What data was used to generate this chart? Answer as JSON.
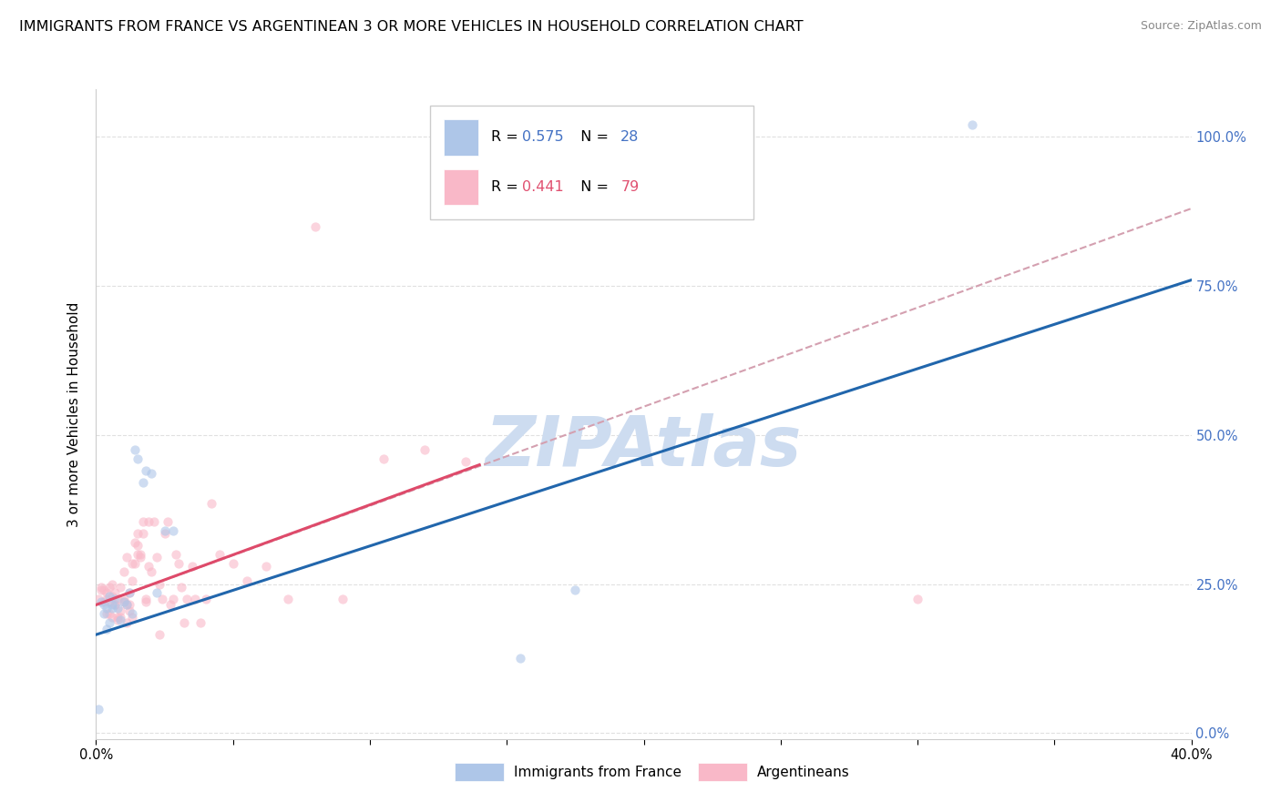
{
  "title": "IMMIGRANTS FROM FRANCE VS ARGENTINEAN 3 OR MORE VEHICLES IN HOUSEHOLD CORRELATION CHART",
  "source": "Source: ZipAtlas.com",
  "ylabel": "3 or more Vehicles in Household",
  "xlim": [
    0.0,
    0.4
  ],
  "ylim": [
    -0.01,
    1.08
  ],
  "xtick_positions": [
    0.0,
    0.05,
    0.1,
    0.15,
    0.2,
    0.25,
    0.3,
    0.35,
    0.4
  ],
  "xtick_labels": [
    "0.0%",
    "",
    "",
    "",
    "",
    "",
    "",
    "",
    "40.0%"
  ],
  "yticks_right": [
    0.0,
    0.25,
    0.5,
    0.75,
    1.0
  ],
  "yticklabels_right": [
    "0.0%",
    "25.0%",
    "50.0%",
    "75.0%",
    "100.0%"
  ],
  "blue_label": "Immigrants from France",
  "pink_label": "Argentineans",
  "R_blue": "0.575",
  "N_blue": "28",
  "R_pink": "0.441",
  "N_pink": "79",
  "blue_color": "#aec6e8",
  "pink_color": "#f9b8c8",
  "blue_line_color": "#2166ac",
  "pink_line_color": "#de4a6a",
  "dashed_line_color": "#d4a0b0",
  "watermark": "ZIPAtlas",
  "watermark_color": "#cddcf0",
  "blue_scatter_x": [
    0.001,
    0.002,
    0.003,
    0.003,
    0.004,
    0.004,
    0.005,
    0.005,
    0.006,
    0.006,
    0.007,
    0.008,
    0.009,
    0.01,
    0.011,
    0.012,
    0.013,
    0.014,
    0.015,
    0.017,
    0.018,
    0.02,
    0.022,
    0.025,
    0.028,
    0.155,
    0.175,
    0.32
  ],
  "blue_scatter_y": [
    0.04,
    0.22,
    0.215,
    0.2,
    0.21,
    0.175,
    0.23,
    0.185,
    0.215,
    0.21,
    0.225,
    0.21,
    0.19,
    0.22,
    0.215,
    0.235,
    0.2,
    0.475,
    0.46,
    0.42,
    0.44,
    0.435,
    0.235,
    0.34,
    0.34,
    0.125,
    0.24,
    1.02
  ],
  "pink_scatter_x": [
    0.001,
    0.002,
    0.002,
    0.003,
    0.003,
    0.004,
    0.004,
    0.004,
    0.005,
    0.005,
    0.005,
    0.006,
    0.006,
    0.006,
    0.007,
    0.007,
    0.007,
    0.008,
    0.008,
    0.008,
    0.009,
    0.009,
    0.009,
    0.01,
    0.01,
    0.01,
    0.011,
    0.011,
    0.011,
    0.012,
    0.012,
    0.012,
    0.013,
    0.013,
    0.013,
    0.014,
    0.014,
    0.015,
    0.015,
    0.015,
    0.016,
    0.016,
    0.017,
    0.017,
    0.018,
    0.018,
    0.019,
    0.019,
    0.02,
    0.021,
    0.022,
    0.023,
    0.023,
    0.024,
    0.025,
    0.026,
    0.027,
    0.028,
    0.029,
    0.03,
    0.031,
    0.032,
    0.033,
    0.035,
    0.036,
    0.038,
    0.04,
    0.042,
    0.045,
    0.05,
    0.055,
    0.062,
    0.07,
    0.08,
    0.09,
    0.105,
    0.12,
    0.135,
    0.3
  ],
  "pink_scatter_y": [
    0.225,
    0.24,
    0.245,
    0.22,
    0.24,
    0.235,
    0.2,
    0.225,
    0.245,
    0.2,
    0.22,
    0.23,
    0.195,
    0.25,
    0.215,
    0.215,
    0.235,
    0.195,
    0.225,
    0.19,
    0.205,
    0.245,
    0.195,
    0.225,
    0.27,
    0.22,
    0.185,
    0.215,
    0.295,
    0.215,
    0.235,
    0.205,
    0.195,
    0.255,
    0.285,
    0.285,
    0.32,
    0.315,
    0.3,
    0.335,
    0.295,
    0.3,
    0.335,
    0.355,
    0.225,
    0.22,
    0.355,
    0.28,
    0.27,
    0.355,
    0.295,
    0.25,
    0.165,
    0.225,
    0.335,
    0.355,
    0.215,
    0.225,
    0.3,
    0.285,
    0.245,
    0.185,
    0.225,
    0.28,
    0.225,
    0.185,
    0.225,
    0.385,
    0.3,
    0.285,
    0.255,
    0.28,
    0.225,
    0.85,
    0.225,
    0.46,
    0.475,
    0.455,
    0.225
  ],
  "blue_line": [
    0.0,
    0.4,
    0.165,
    0.76
  ],
  "pink_line": [
    0.0,
    0.14,
    0.215,
    0.45
  ],
  "dashed_line": [
    0.0,
    0.4,
    0.215,
    0.88
  ],
  "background_color": "#ffffff",
  "grid_color": "#e0e0e0",
  "scatter_size": 55,
  "scatter_alpha": 0.6,
  "line_width": 2.2,
  "title_fontsize": 11.5,
  "source_fontsize": 9,
  "legend_fontsize": 11.5,
  "tick_fontsize": 10.5,
  "ylabel_fontsize": 11
}
